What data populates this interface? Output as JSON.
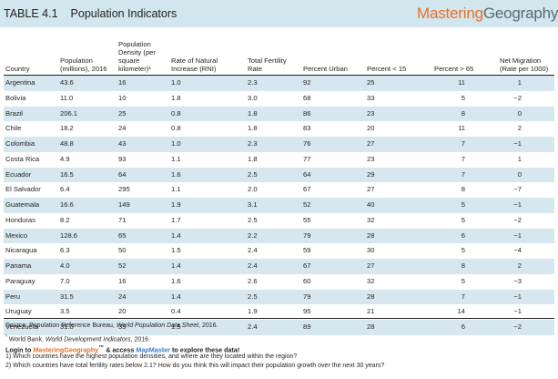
{
  "header": {
    "table_label": "TABLE 4.1",
    "title": "Population Indicators",
    "brand_prefix": "Mastering",
    "brand_suffix": "Geography",
    "brand_tm": "™"
  },
  "columns": [
    "Country",
    "Population (millions), 2016",
    "Population Density (per square kilometer)¹",
    "Rate of Natural Increase (RNI)",
    "Total Fertility Rate",
    "Percent Urban",
    "Percent < 15",
    "Percent > 65",
    "Net Migration (Rate per 1000)"
  ],
  "rows": [
    [
      "Argentina",
      "43.6",
      "16",
      "1.0",
      "2.3",
      "92",
      "25",
      "11",
      "1"
    ],
    [
      "Bolivia",
      "11.0",
      "10",
      "1.8",
      "3.0",
      "68",
      "33",
      "5",
      "−2"
    ],
    [
      "Brazil",
      "206.1",
      "25",
      "0.8",
      "1.8",
      "86",
      "23",
      "8",
      "0"
    ],
    [
      "Chile",
      "18.2",
      "24",
      "0.8",
      "1.8",
      "83",
      "20",
      "11",
      "2"
    ],
    [
      "Colombia",
      "48.8",
      "43",
      "1.0",
      "2.3",
      "76",
      "27",
      "7",
      "−1"
    ],
    [
      "Costa Rica",
      "4.9",
      "93",
      "1.1",
      "1.8",
      "77",
      "23",
      "7",
      "1"
    ],
    [
      "Ecuador",
      "16.5",
      "64",
      "1.6",
      "2.5",
      "64",
      "29",
      "7",
      "0"
    ],
    [
      "El Salvador",
      "6.4",
      "295",
      "1.1",
      "2.0",
      "67",
      "27",
      "8",
      "−7"
    ],
    [
      "Guatemala",
      "16.6",
      "149",
      "1.9",
      "3.1",
      "52",
      "40",
      "5",
      "−1"
    ],
    [
      "Honduras",
      "8.2",
      "71",
      "1.7",
      "2.5",
      "55",
      "32",
      "5",
      "−2"
    ],
    [
      "Mexico",
      "128.6",
      "65",
      "1.4",
      "2.2",
      "79",
      "28",
      "6",
      "−1"
    ],
    [
      "Nicaragua",
      "6.3",
      "50",
      "1.5",
      "2.4",
      "59",
      "30",
      "5",
      "−4"
    ],
    [
      "Panama",
      "4.0",
      "52",
      "1.4",
      "2.4",
      "67",
      "27",
      "8",
      "2"
    ],
    [
      "Paraguay",
      "7.0",
      "16",
      "1.6",
      "2.6",
      "60",
      "32",
      "5",
      "−3"
    ],
    [
      "Peru",
      "31.5",
      "24",
      "1.4",
      "2.5",
      "79",
      "28",
      "7",
      "−1"
    ],
    [
      "Uruguay",
      "3.5",
      "20",
      "0.4",
      "1.9",
      "95",
      "21",
      "14",
      "−1"
    ],
    [
      "Venezuela",
      "31.0",
      "35",
      "1.5",
      "2.4",
      "89",
      "28",
      "6",
      "−2"
    ]
  ],
  "notes": {
    "source_prefix": "Source: Population Reference Bureau, ",
    "source_italic": "World Population Data Sheet",
    "source_suffix": ", 2016.",
    "fn_mark": "¹",
    "fn_prefix": " World Bank, ",
    "fn_italic": "World Development Indicators",
    "fn_suffix": ", 2016."
  },
  "login": {
    "prefix": "Login to ",
    "mg": "MasteringGeography",
    "tm": "™",
    "middle": " & access ",
    "mm": "MapMaster",
    "suffix": " to explore these data!"
  },
  "questions": [
    "1)  Which countries have the highest population densities, and where are they located within the region?",
    "2)  Which countries have total fertility rates below 2.1? How do you think this will impact their population growth over the next 30 years?"
  ]
}
